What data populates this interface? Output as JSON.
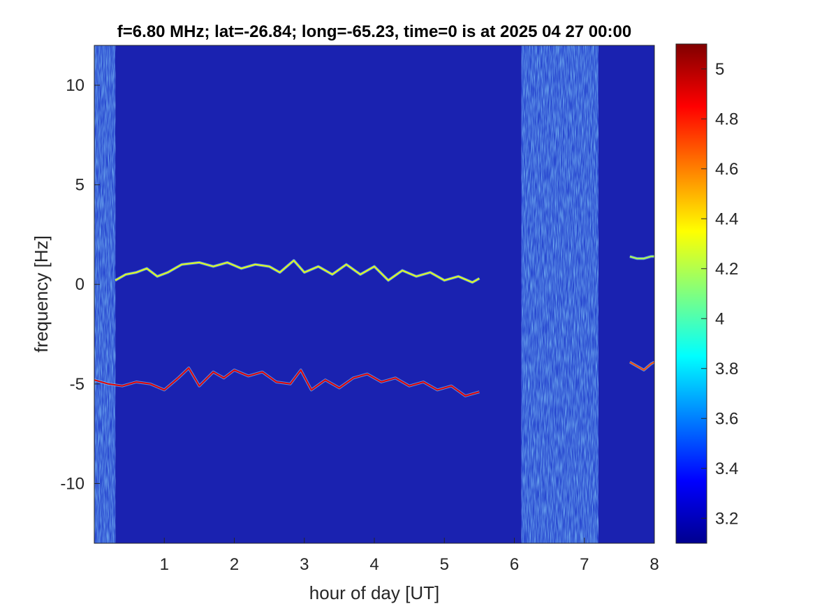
{
  "chart_data": {
    "type": "heatmap",
    "title": "f=6.80 MHz;  lat=-26.84; long=-65.23, time=0 is at 2025 04 27 00:00",
    "xlabel": "hour of day [UT]",
    "ylabel": "frequency [Hz]",
    "xlim": [
      0,
      8
    ],
    "ylim": [
      -13,
      12
    ],
    "x_ticks": [
      "1",
      "2",
      "3",
      "4",
      "5",
      "6",
      "7",
      "8"
    ],
    "x_tick_values": [
      1,
      2,
      3,
      4,
      5,
      6,
      7,
      8
    ],
    "y_ticks": [
      "10",
      "5",
      "0",
      "-5",
      "-10"
    ],
    "y_tick_values": [
      10,
      5,
      0,
      -5,
      -10
    ],
    "colorbar": {
      "range": [
        3.1,
        5.1
      ],
      "colormap": "jet",
      "ticks": [
        "3.2",
        "3.4",
        "3.6",
        "3.8",
        "4",
        "4.2",
        "4.4",
        "4.6",
        "4.8",
        "5"
      ],
      "tick_values": [
        3.2,
        3.4,
        3.6,
        3.8,
        4.0,
        4.2,
        4.4,
        4.6,
        4.8,
        5.0
      ]
    },
    "background_level": 3.15,
    "noisy_bands_hours": [
      [
        0.0,
        0.3
      ],
      [
        6.1,
        7.2
      ]
    ],
    "traces": [
      {
        "x": [
          0.3,
          0.45,
          0.6,
          0.75,
          0.9,
          1.05,
          1.25,
          1.5,
          1.7,
          1.9,
          2.1,
          2.3,
          2.5,
          2.65,
          2.85,
          3.0,
          3.2,
          3.4,
          3.6,
          3.8,
          4.0,
          4.2,
          4.4,
          4.6,
          4.8,
          5.0,
          5.2,
          5.4,
          5.5
        ],
        "y": [
          0.2,
          0.5,
          0.6,
          0.8,
          0.4,
          0.6,
          1.0,
          1.1,
          0.9,
          1.1,
          0.8,
          1.0,
          0.9,
          0.6,
          1.2,
          0.6,
          0.9,
          0.5,
          1.0,
          0.5,
          0.9,
          0.2,
          0.7,
          0.4,
          0.6,
          0.2,
          0.4,
          0.1,
          0.3
        ],
        "level": 4.3
      },
      {
        "x": [
          0.0,
          0.2,
          0.4,
          0.6,
          0.8,
          1.0,
          1.2,
          1.35,
          1.5,
          1.7,
          1.85,
          2.0,
          2.2,
          2.4,
          2.6,
          2.8,
          2.95,
          3.1,
          3.3,
          3.5,
          3.7,
          3.9,
          4.1,
          4.3,
          4.5,
          4.7,
          4.9,
          5.1,
          5.3,
          5.5
        ],
        "y": [
          -4.8,
          -5.0,
          -5.1,
          -4.9,
          -5.0,
          -5.3,
          -4.7,
          -4.2,
          -5.1,
          -4.4,
          -4.7,
          -4.3,
          -4.6,
          -4.4,
          -4.9,
          -5.0,
          -4.3,
          -5.3,
          -4.8,
          -5.2,
          -4.7,
          -4.5,
          -4.9,
          -4.7,
          -5.1,
          -4.9,
          -5.3,
          -5.1,
          -5.6,
          -5.4
        ],
        "level": 4.9
      },
      {
        "x": [
          7.65,
          7.75,
          7.85,
          7.95,
          8.0
        ],
        "y": [
          1.4,
          1.3,
          1.3,
          1.4,
          1.4
        ],
        "level": 4.2
      },
      {
        "x": [
          7.65,
          7.75,
          7.85,
          7.95,
          8.0
        ],
        "y": [
          -3.9,
          -4.1,
          -4.3,
          -4.0,
          -3.9
        ],
        "level": 4.7
      }
    ]
  }
}
